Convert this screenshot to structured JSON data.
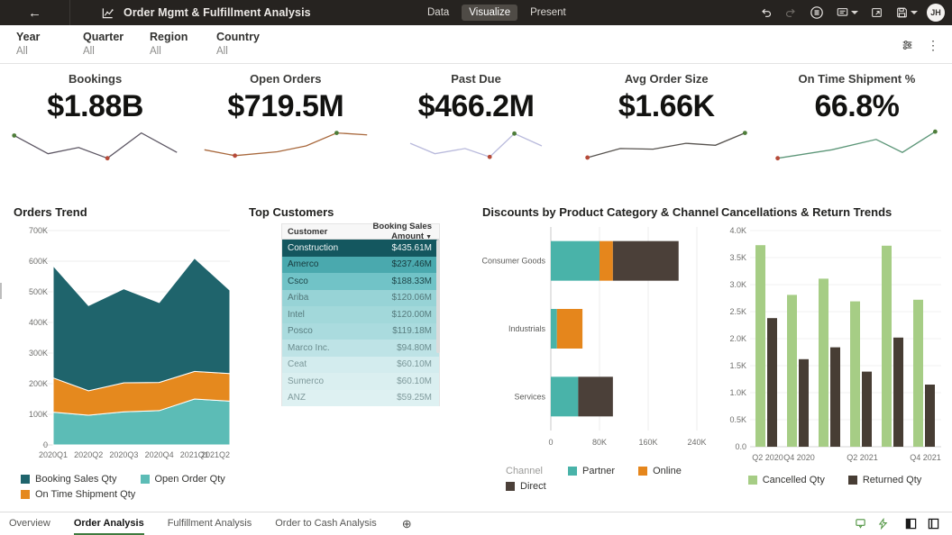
{
  "topbar": {
    "title": "Order Mgmt & Fulfillment Analysis",
    "tabs": [
      {
        "label": "Data",
        "active": false
      },
      {
        "label": "Visualize",
        "active": true
      },
      {
        "label": "Present",
        "active": false
      }
    ],
    "avatar_initials": "JH"
  },
  "filterbar": {
    "filters": [
      {
        "label": "Year",
        "value": "All"
      },
      {
        "label": "Quarter",
        "value": "All"
      },
      {
        "label": "Region",
        "value": "All"
      },
      {
        "label": "Country",
        "value": "All"
      }
    ]
  },
  "kpis": [
    {
      "title": "Bookings",
      "value": "$1.88B",
      "line_color": "#5c5663",
      "points": [
        [
          0.02,
          0.18
        ],
        [
          0.22,
          0.74
        ],
        [
          0.4,
          0.55
        ],
        [
          0.57,
          0.88
        ],
        [
          0.77,
          0.1
        ],
        [
          0.98,
          0.7
        ]
      ],
      "dots": [
        {
          "index": 0,
          "color": "#4e7d3a"
        },
        {
          "index": 3,
          "color": "#b64a39"
        }
      ]
    },
    {
      "title": "Open Orders",
      "value": "$719.5M",
      "line_color": "#a8683c",
      "points": [
        [
          0.02,
          0.62
        ],
        [
          0.2,
          0.8
        ],
        [
          0.45,
          0.68
        ],
        [
          0.62,
          0.5
        ],
        [
          0.8,
          0.1
        ],
        [
          0.98,
          0.16
        ]
      ],
      "dots": [
        {
          "index": 1,
          "color": "#b64a39"
        },
        {
          "index": 4,
          "color": "#4e7d3a"
        }
      ]
    },
    {
      "title": "Past Due",
      "value": "$466.2M",
      "line_color": "#b9badc",
      "points": [
        [
          0.02,
          0.42
        ],
        [
          0.2,
          0.74
        ],
        [
          0.42,
          0.58
        ],
        [
          0.6,
          0.84
        ],
        [
          0.78,
          0.12
        ],
        [
          0.98,
          0.5
        ]
      ],
      "dots": [
        {
          "index": 3,
          "color": "#b64a39"
        },
        {
          "index": 4,
          "color": "#4e7d3a"
        }
      ]
    },
    {
      "title": "Avg Order Size",
      "value": "$1.66K",
      "line_color": "#56524e",
      "points": [
        [
          0.02,
          0.86
        ],
        [
          0.22,
          0.58
        ],
        [
          0.42,
          0.6
        ],
        [
          0.62,
          0.42
        ],
        [
          0.8,
          0.48
        ],
        [
          0.98,
          0.1
        ]
      ],
      "dots": [
        {
          "index": 0,
          "color": "#b64a39"
        },
        {
          "index": 5,
          "color": "#4e7d3a"
        }
      ]
    },
    {
      "title": "On Time Shipment %",
      "value": "66.8%",
      "line_color": "#5c9678",
      "points": [
        [
          0.02,
          0.88
        ],
        [
          0.35,
          0.62
        ],
        [
          0.62,
          0.3
        ],
        [
          0.78,
          0.7
        ],
        [
          0.98,
          0.06
        ]
      ],
      "dots": [
        {
          "index": 0,
          "color": "#b64a39"
        },
        {
          "index": 4,
          "color": "#4e7d3a"
        }
      ]
    }
  ],
  "chart_data": [
    {
      "id": "orders_trend",
      "type": "area",
      "stacked": true,
      "title": "Orders Trend",
      "categories": [
        "2020Q1",
        "2020Q2",
        "2020Q3",
        "2020Q4",
        "2021Q1",
        "2021Q2"
      ],
      "series": [
        {
          "name": "Open Order Qty",
          "color": "#5cbcb6",
          "values": [
            107000,
            97000,
            108000,
            112000,
            150000,
            143000
          ]
        },
        {
          "name": "On Time Shipment Qty",
          "color": "#e5891e",
          "values": [
            112000,
            80000,
            95000,
            92000,
            90000,
            90000
          ]
        },
        {
          "name": "Booking Sales Qty",
          "color": "#1f646c",
          "values": [
            366000,
            278000,
            307000,
            261000,
            370000,
            272000
          ]
        }
      ],
      "ylim": [
        0,
        700000
      ],
      "yticks": [
        "700K",
        "600K",
        "500K",
        "400K",
        "300K",
        "200K",
        "100K",
        "0"
      ],
      "legend_order": [
        "Booking Sales Qty",
        "Open Order Qty",
        "On Time Shipment Qty"
      ],
      "grid": true,
      "legend_position": "bottom"
    },
    {
      "id": "top_customers",
      "type": "table",
      "title": "Top Customers",
      "columns": [
        "Customer",
        "Booking Sales Amount"
      ],
      "sort": {
        "column": "Booking Sales Amount",
        "direction": "desc"
      },
      "rows": [
        {
          "customer": "Construction",
          "amount": "$435.61M",
          "bg": "#14575f",
          "fg": "#f2f7f7"
        },
        {
          "customer": "Amerco",
          "amount": "$237.46M",
          "bg": "#4aa9ae",
          "fg": "#17393c"
        },
        {
          "customer": "Csco",
          "amount": "$188.33M",
          "bg": "#71c3c7",
          "fg": "#1d4649"
        },
        {
          "customer": "Ariba",
          "amount": "$120.06M",
          "bg": "#97d3d6",
          "fg": "#527779"
        },
        {
          "customer": "Intel",
          "amount": "$120.00M",
          "bg": "#a2d8da",
          "fg": "#567b7d"
        },
        {
          "customer": "Posco",
          "amount": "$119.18M",
          "bg": "#aadbde",
          "fg": "#597e80"
        },
        {
          "customer": "Marco Inc.",
          "amount": "$94.80M",
          "bg": "#bee3e6",
          "fg": "#6a8b8d"
        },
        {
          "customer": "Ceat",
          "amount": "$60.10M",
          "bg": "#d3ecee",
          "fg": "#7a9799"
        },
        {
          "customer": "Sumerco",
          "amount": "$60.10M",
          "bg": "#daeff0",
          "fg": "#7e999b"
        },
        {
          "customer": "ANZ",
          "amount": "$59.25M",
          "bg": "#def1f2",
          "fg": "#819b9d"
        }
      ]
    },
    {
      "id": "discounts",
      "type": "bar",
      "orientation": "horizontal",
      "stacked": true,
      "title": "Discounts by Product Category & Channel",
      "categories": [
        "Consumer Goods",
        "Industrials",
        "Services"
      ],
      "series": [
        {
          "name": "Partner",
          "color": "#49b3a9",
          "values": [
            80000,
            10000,
            45000
          ]
        },
        {
          "name": "Online",
          "color": "#e5861c",
          "values": [
            22000,
            42000,
            0
          ]
        },
        {
          "name": "Direct",
          "color": "#4b4039",
          "values": [
            108000,
            0,
            57000
          ]
        }
      ],
      "xlim": [
        0,
        240000
      ],
      "xticks": [
        "0",
        "80K",
        "160K",
        "240K"
      ],
      "xtick_values": [
        0,
        80000,
        160000,
        240000
      ],
      "legend_title": "Channel",
      "grid": true,
      "legend_position": "bottom"
    },
    {
      "id": "cancellations",
      "type": "bar",
      "orientation": "vertical",
      "grouped": true,
      "title": "Cancellations & Return Trends",
      "categories": [
        "Q2 2020",
        "Q4 2020",
        "",
        "Q2 2021",
        "",
        "Q4 2021"
      ],
      "series": [
        {
          "name": "Cancelled Qty",
          "color": "#a6cd85",
          "values": [
            3730,
            2810,
            3110,
            2690,
            3720,
            2720
          ]
        },
        {
          "name": "Returned Qty",
          "color": "#473d34",
          "values": [
            2380,
            1620,
            1840,
            1390,
            2020,
            1150
          ]
        }
      ],
      "ylim": [
        0,
        4000
      ],
      "yticks": [
        "4.0K",
        "3.5K",
        "3.0K",
        "2.5K",
        "2.0K",
        "1.5K",
        "1.0K",
        "0.5K",
        "0.0"
      ],
      "grid": true,
      "legend_position": "bottom"
    }
  ],
  "bottombar": {
    "tabs": [
      {
        "label": "Overview",
        "active": false
      },
      {
        "label": "Order Analysis",
        "active": true
      },
      {
        "label": "Fulfillment Analysis",
        "active": false
      },
      {
        "label": "Order to Cash Analysis",
        "active": false
      }
    ]
  },
  "icons": {
    "back": "←",
    "kebab": "⋮",
    "sort_desc": "▼",
    "add_page": "⊕"
  },
  "colors": {
    "accent_green": "#3f7a3e",
    "topbar_bg": "#262320",
    "dot_positive": "#4e7d3a",
    "dot_negative": "#b64a39"
  }
}
